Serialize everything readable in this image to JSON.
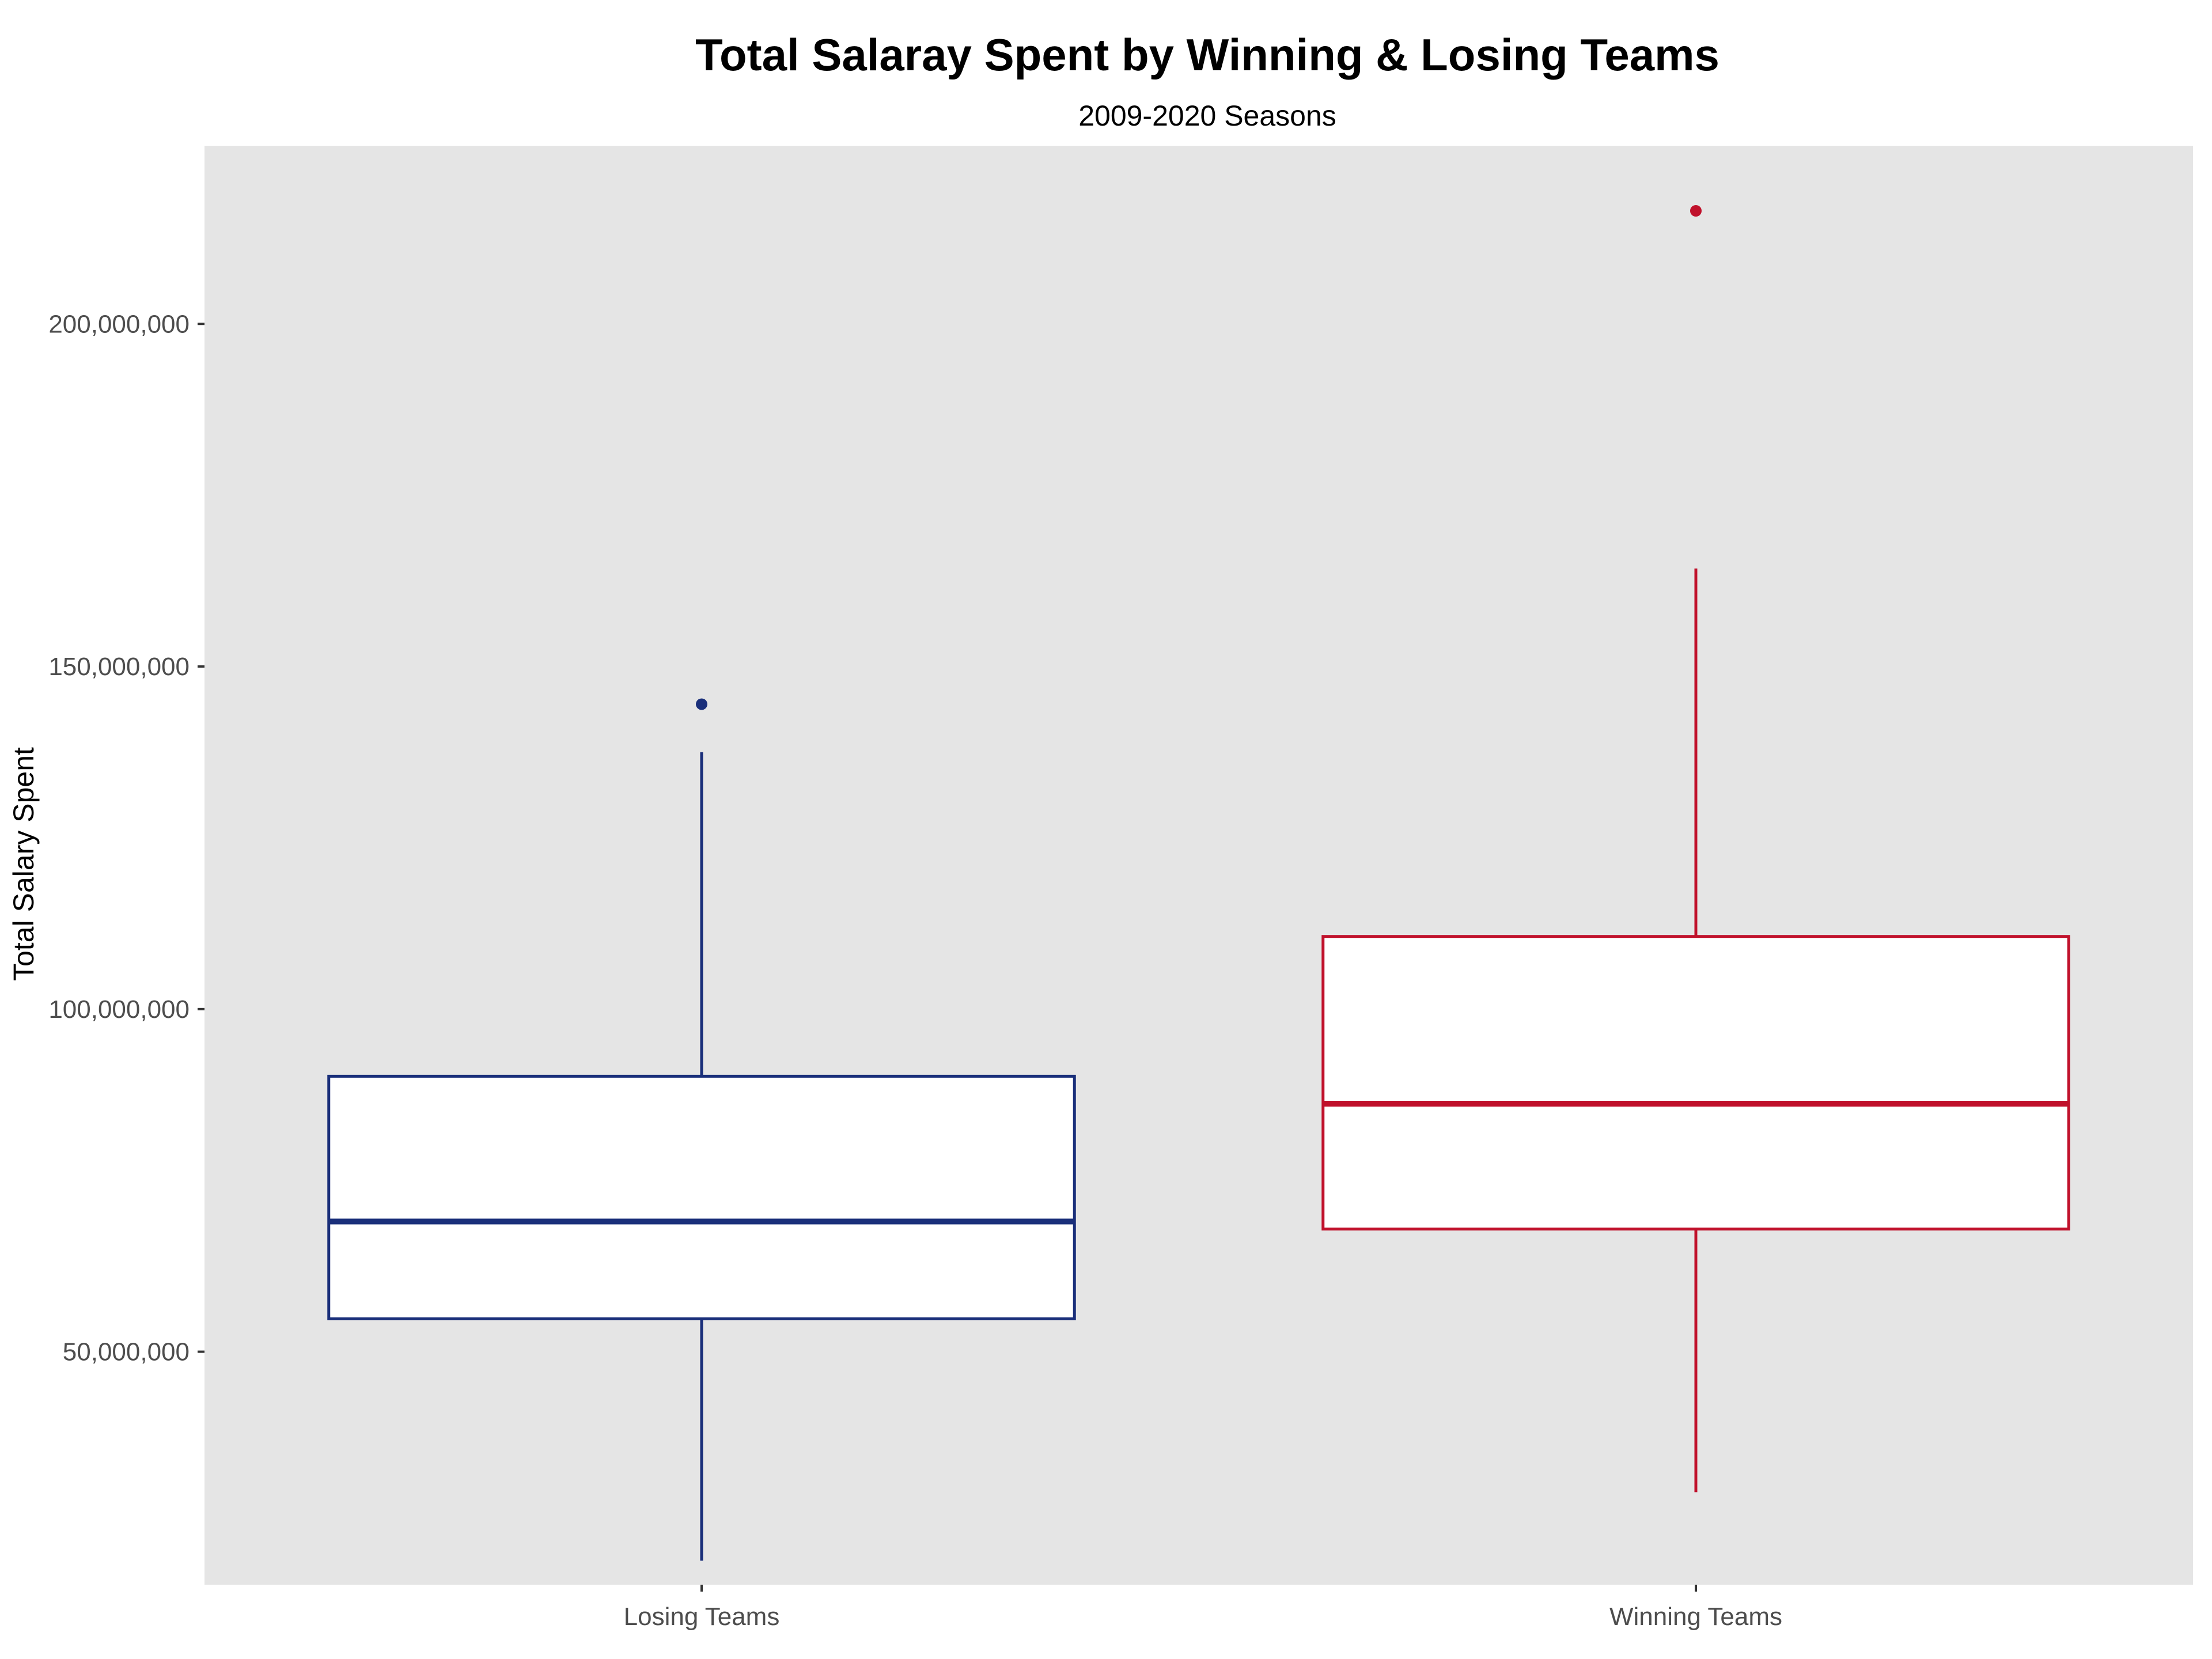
{
  "chart_data": {
    "type": "boxplot",
    "title": "Total Salaray Spent by Winning & Losing Teams",
    "subtitle": "2009-2020 Seasons",
    "xlabel": "",
    "ylabel": "Total Salary Spent",
    "categories": [
      "Losing Teams",
      "Winning Teams"
    ],
    "ylim": [
      16000000,
      226000000
    ],
    "yticks": [
      50000000,
      100000000,
      150000000,
      200000000
    ],
    "ytick_labels": [
      "50,000,000",
      "100,000,000",
      "150,000,000",
      "200,000,000"
    ],
    "grid": false,
    "panel_background": "#e5e5e5",
    "boxes": [
      {
        "category": "Losing Teams",
        "color": "#1a2f7a",
        "whisker_low": 19500000,
        "q1": 54800000,
        "median": 69000000,
        "q3": 90200000,
        "whisker_high": 137500000,
        "outliers": [
          144500000
        ]
      },
      {
        "category": "Winning Teams",
        "color": "#c0112b",
        "whisker_low": 29500000,
        "q1": 67900000,
        "median": 86200000,
        "q3": 110600000,
        "whisker_high": 164300000,
        "outliers": [
          216500000
        ]
      }
    ]
  }
}
